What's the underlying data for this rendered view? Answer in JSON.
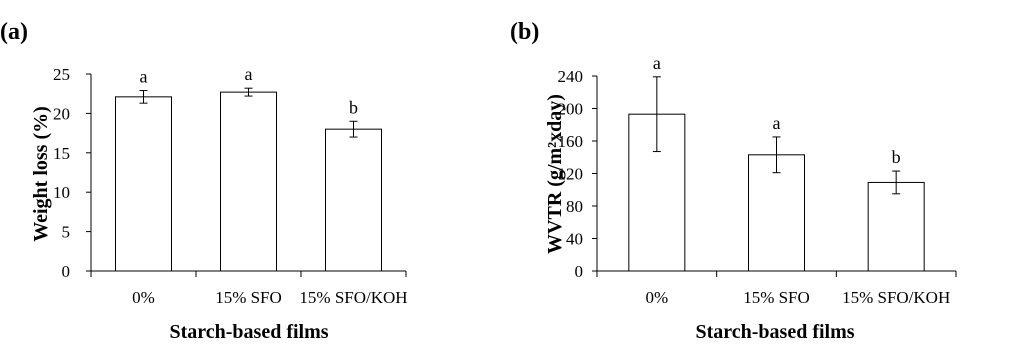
{
  "chart_data": [
    {
      "type": "bar",
      "panel_label": "(a)",
      "categories": [
        "0%",
        "15% SFO",
        "15% SFO/KOH"
      ],
      "values": [
        22.1,
        22.7,
        18.0
      ],
      "errors": [
        0.8,
        0.5,
        1.0
      ],
      "significance": [
        "a",
        "a",
        "b"
      ],
      "xlabel": "Starch-based films",
      "ylabel": "Weight loss (%)",
      "ylim": [
        0,
        25
      ],
      "yticks": [
        0,
        5,
        10,
        15,
        20,
        25
      ],
      "grid": false
    },
    {
      "type": "bar",
      "panel_label": "(b)",
      "categories": [
        "0%",
        "15% SFO",
        "15% SFO/KOH"
      ],
      "values": [
        193,
        143,
        109
      ],
      "errors": [
        46,
        22,
        14
      ],
      "significance": [
        "a",
        "a",
        "b"
      ],
      "xlabel": "Starch-based films",
      "ylabel": "WVTR (g/m²xday)",
      "ylim": [
        0,
        240
      ],
      "yticks": [
        0,
        40,
        80,
        120,
        160,
        200,
        240
      ],
      "grid": false
    }
  ]
}
